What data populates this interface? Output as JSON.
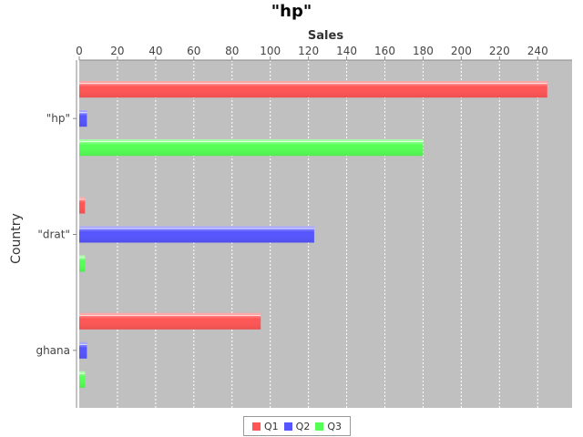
{
  "chart_data": {
    "type": "bar",
    "orientation": "horizontal",
    "title": "\"hp\"",
    "xlabel": "Sales",
    "ylabel": "Country",
    "categories": [
      "\"hp\"",
      "\"drat\"",
      "ghana"
    ],
    "series": [
      {
        "name": "Q1",
        "color": "#ff5555",
        "values": [
          245,
          3,
          95
        ]
      },
      {
        "name": "Q2",
        "color": "#5555ff",
        "values": [
          4,
          123,
          4
        ]
      },
      {
        "name": "Q3",
        "color": "#55ff55",
        "values": [
          180,
          3,
          3
        ]
      }
    ],
    "xlim": [
      0,
      258
    ],
    "xticks": [
      0,
      20,
      40,
      60,
      80,
      100,
      120,
      140,
      160,
      180,
      200,
      220,
      240
    ],
    "grid": true,
    "legend": "bottom"
  }
}
